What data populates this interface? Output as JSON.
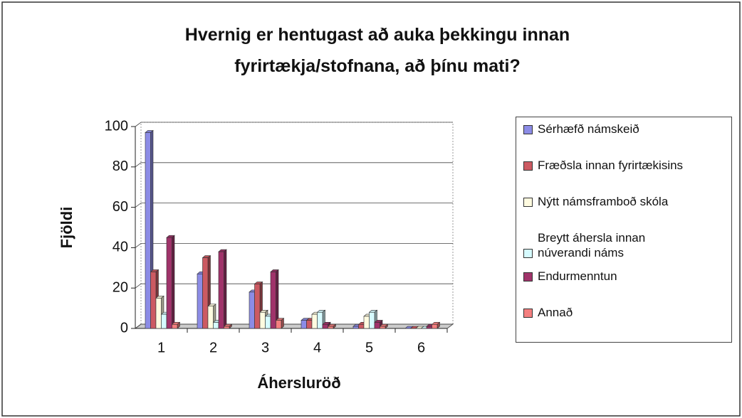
{
  "chart_data": {
    "type": "bar",
    "title": "Hvernig er hentugast að auka þekkingu innan\nfyrirtækja/stofnana, að þínu mati?",
    "x_label": "Áhersluröð",
    "y_label": "Fjöldi",
    "categories": [
      "1",
      "2",
      "3",
      "4",
      "5",
      "6"
    ],
    "series": [
      {
        "name": "Sérhæfð námskeið",
        "color": "#8c8ce6",
        "values": [
          97,
          27,
          18,
          4,
          1,
          0
        ]
      },
      {
        "name": "Fræðsla innan fyrirtækisins",
        "color": "#cc5a62",
        "values": [
          28,
          35,
          22,
          4,
          2,
          0
        ]
      },
      {
        "name": "Nýtt námsframboð skóla",
        "color": "#fffbe0",
        "values": [
          15,
          11,
          8,
          7,
          6,
          0
        ]
      },
      {
        "name": "Breytt áhersla innan\nnúverandi náms",
        "color": "#d6fbff",
        "values": [
          7,
          3,
          6,
          8,
          8,
          0
        ]
      },
      {
        "name": "Endurmenntun",
        "color": "#a0336a",
        "values": [
          45,
          38,
          28,
          2,
          3,
          1
        ]
      },
      {
        "name": "Annað",
        "color": "#f47f7f",
        "values": [
          2,
          1,
          4,
          1,
          1,
          2
        ]
      }
    ],
    "ylim": [
      0,
      100
    ],
    "yticks": [
      0,
      20,
      40,
      60,
      80,
      100
    ],
    "grid": true,
    "legend": "right"
  }
}
